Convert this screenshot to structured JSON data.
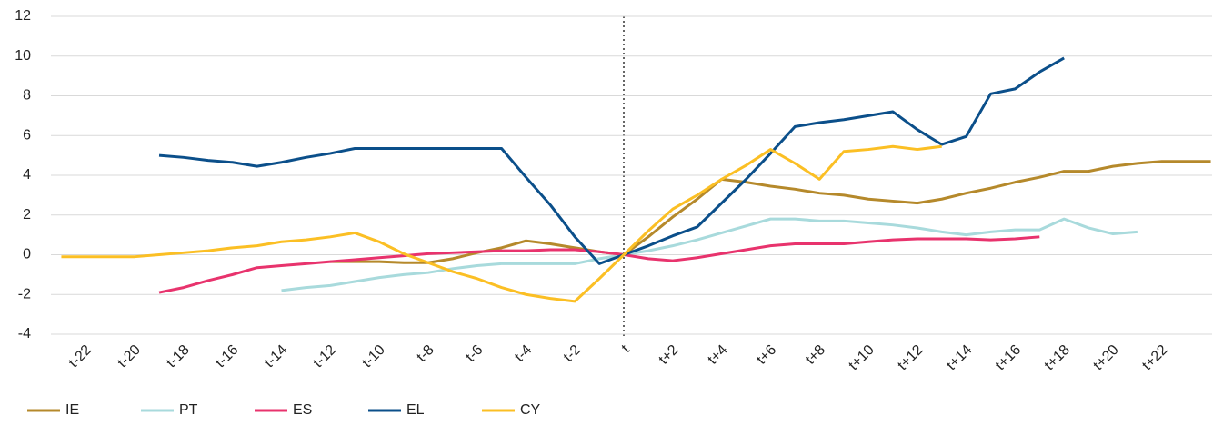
{
  "chart_data": {
    "type": "line",
    "categories": [
      null,
      "t-22",
      null,
      "t-20",
      null,
      "t-18",
      null,
      "t-16",
      null,
      "t-14",
      null,
      "t-12",
      null,
      "t-10",
      null,
      "t-8",
      null,
      "t-6",
      null,
      "t-4",
      null,
      "t-2",
      null,
      "t",
      null,
      "t+2",
      null,
      "t+4",
      null,
      "t+6",
      null,
      "t+8",
      null,
      "t+10",
      null,
      "t+12",
      null,
      "t+14",
      null,
      "t+16",
      null,
      "t+18",
      null,
      "t+20",
      null,
      "t+22",
      null,
      null
    ],
    "series": [
      {
        "name": "IE",
        "color": "#b5892b",
        "values": [
          null,
          null,
          null,
          null,
          null,
          null,
          null,
          null,
          null,
          null,
          null,
          -0.35,
          -0.35,
          -0.35,
          -0.4,
          -0.4,
          -0.2,
          0.1,
          0.35,
          0.7,
          0.55,
          0.35,
          0.15,
          0,
          0.9,
          1.9,
          2.8,
          3.8,
          3.65,
          3.45,
          3.3,
          3.1,
          3.0,
          2.8,
          2.7,
          2.6,
          2.8,
          3.1,
          3.35,
          3.65,
          3.9,
          4.2,
          4.2,
          4.45,
          4.6,
          4.7,
          4.7,
          4.7
        ]
      },
      {
        "name": "PT",
        "color": "#a8dadc",
        "values": [
          null,
          null,
          null,
          null,
          null,
          null,
          null,
          null,
          null,
          -1.8,
          -1.65,
          -1.55,
          -1.35,
          -1.15,
          -1.0,
          -0.9,
          -0.7,
          -0.55,
          -0.45,
          -0.45,
          -0.45,
          -0.45,
          -0.2,
          0,
          0.2,
          0.45,
          0.75,
          1.1,
          1.45,
          1.8,
          1.8,
          1.7,
          1.7,
          1.6,
          1.5,
          1.35,
          1.15,
          1.0,
          1.15,
          1.25,
          1.25,
          1.8,
          1.35,
          1.05,
          1.15,
          null,
          null,
          null
        ]
      },
      {
        "name": "ES",
        "color": "#e8336d",
        "values": [
          null,
          null,
          null,
          null,
          -1.9,
          -1.65,
          -1.3,
          -1.0,
          -0.65,
          -0.55,
          -0.45,
          -0.35,
          -0.25,
          -0.15,
          -0.05,
          0.05,
          0.1,
          0.15,
          0.2,
          0.2,
          0.25,
          0.25,
          0.15,
          0,
          -0.2,
          -0.3,
          -0.15,
          0.05,
          0.25,
          0.45,
          0.55,
          0.55,
          0.55,
          0.65,
          0.75,
          0.8,
          0.8,
          0.8,
          0.75,
          0.8,
          0.9,
          null,
          null,
          null,
          null,
          null,
          null,
          null
        ]
      },
      {
        "name": "EL",
        "color": "#0b4f8a",
        "values": [
          null,
          null,
          null,
          null,
          5.0,
          4.9,
          4.75,
          4.65,
          4.45,
          4.65,
          4.9,
          5.1,
          5.35,
          5.35,
          5.35,
          5.35,
          5.35,
          5.35,
          5.35,
          3.9,
          2.5,
          0.9,
          -0.45,
          0,
          0.45,
          0.95,
          1.4,
          2.6,
          3.8,
          5.1,
          6.45,
          6.65,
          6.8,
          7.0,
          7.2,
          6.3,
          5.55,
          5.95,
          8.1,
          8.35,
          9.2,
          9.9,
          null,
          null,
          null,
          null,
          null,
          null
        ]
      },
      {
        "name": "CY",
        "color": "#fbbf24",
        "values": [
          -0.1,
          -0.1,
          -0.1,
          -0.1,
          0.0,
          0.1,
          0.2,
          0.35,
          0.45,
          0.65,
          0.75,
          0.9,
          1.1,
          0.65,
          0.05,
          -0.4,
          -0.85,
          -1.2,
          -1.65,
          -2.0,
          -2.2,
          -2.35,
          -1.2,
          0,
          1.2,
          2.3,
          3.0,
          3.8,
          4.5,
          5.3,
          4.6,
          3.8,
          5.2,
          5.3,
          5.45,
          5.3,
          5.45,
          null,
          null,
          null,
          null,
          null,
          null,
          null,
          null,
          null,
          null,
          null
        ]
      }
    ],
    "ylim": [
      -4,
      12
    ],
    "yticks": [
      -4,
      -2,
      0,
      2,
      4,
      6,
      8,
      10,
      12
    ],
    "grid": true,
    "legend": "bottom"
  }
}
